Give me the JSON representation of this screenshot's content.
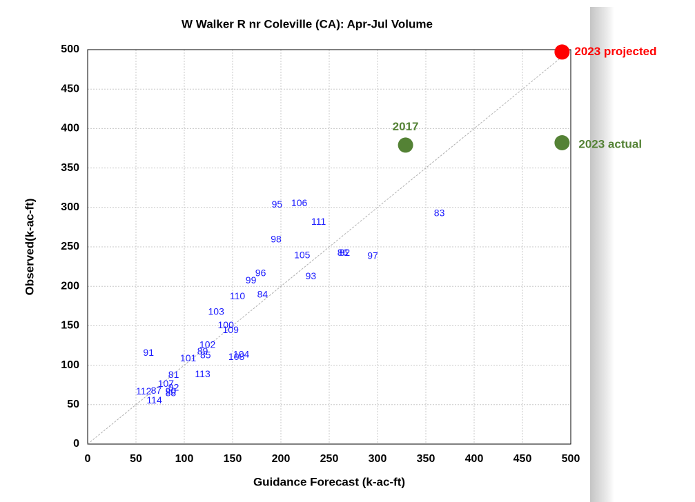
{
  "chart_data": {
    "type": "scatter",
    "title": "W Walker R nr Coleville  (CA): Apr-Jul Volume",
    "x_label": "Guidance Forecast (k-ac-ft)",
    "y_label": "Observed(k-ac-ft)",
    "xlim": [
      0,
      500
    ],
    "ylim": [
      0,
      500
    ],
    "xticks": [
      0,
      50,
      100,
      150,
      200,
      250,
      300,
      350,
      400,
      450,
      500
    ],
    "yticks": [
      0,
      50,
      100,
      150,
      200,
      250,
      300,
      350,
      400,
      450,
      500
    ],
    "grid": true,
    "color": "#1a1aff",
    "labels": [
      "95",
      "106",
      "111",
      "83",
      "98",
      "105",
      "86",
      "82",
      "97",
      "96",
      "99",
      "93",
      "110",
      "84",
      "103",
      "100",
      "109",
      "102",
      "91",
      "89",
      "101",
      "85",
      "104",
      "108",
      "113",
      "81",
      "107",
      "92",
      "87",
      "112",
      "90",
      "88",
      "114"
    ],
    "x": [
      196,
      219,
      239,
      364,
      195,
      222,
      264,
      266,
      295,
      179,
      169,
      231,
      155,
      181,
      133,
      143,
      148,
      124,
      63,
      119,
      104,
      122,
      159,
      154,
      119,
      89,
      81,
      89,
      71,
      58,
      86,
      86,
      69
    ],
    "y": [
      303,
      305,
      281,
      292,
      259,
      239,
      242,
      242,
      238,
      216,
      207,
      212,
      187,
      189,
      167,
      150,
      144,
      125,
      115,
      117,
      108,
      112,
      113,
      110,
      88,
      87,
      76,
      71,
      67,
      66,
      66,
      64,
      55
    ],
    "highlights": [
      {
        "label": "2023 projected",
        "x": 491,
        "y": 497,
        "color": "#ff0000"
      },
      {
        "label": "2017",
        "x": 329,
        "y": 379,
        "color": "#548235"
      },
      {
        "label": "2023 actual",
        "x": 491,
        "y": 382,
        "color": "#548235"
      }
    ]
  }
}
